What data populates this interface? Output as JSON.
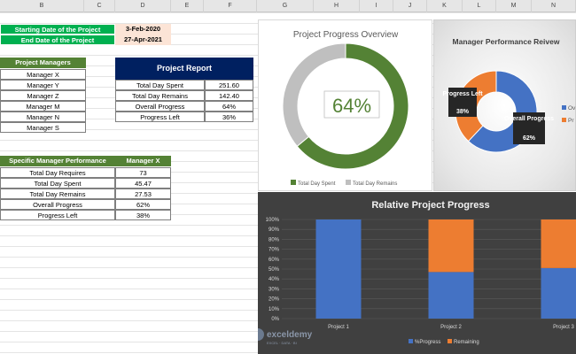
{
  "columns": [
    "B",
    "C",
    "D",
    "E",
    "F",
    "G",
    "H",
    "I",
    "J",
    "K",
    "L",
    "M",
    "N"
  ],
  "project_dates": {
    "start_label": "Starting Date of the Project",
    "start_value": "3-Feb-2020",
    "end_label": "End Date of the Project",
    "end_value": "27-Apr-2021"
  },
  "managers": {
    "header": "Project Managers",
    "items": [
      "Manager X",
      "Manager Y",
      "Manager Z",
      "Manager M",
      "Manager N",
      "Manager S"
    ]
  },
  "project_report": {
    "title": "Project Report",
    "rows": [
      {
        "label": "Total Day Spent",
        "value": "251.60"
      },
      {
        "label": "Total Day Remains",
        "value": "142.40"
      },
      {
        "label": "Overall Progress",
        "value": "64%"
      },
      {
        "label": "Progress Left",
        "value": "36%"
      }
    ]
  },
  "manager_performance": {
    "header_label": "Specific Manager Performance",
    "header_value": "Manager X",
    "rows": [
      {
        "label": "Total Day Requires",
        "value": "73"
      },
      {
        "label": "Total Day Spent",
        "value": "45.47"
      },
      {
        "label": "Total Day Remains",
        "value": "27.53"
      },
      {
        "label": "Overall Progress",
        "value": "62%"
      },
      {
        "label": "Progress Left",
        "value": "38%"
      }
    ]
  },
  "chart_data": [
    {
      "type": "pie",
      "title": "Project Progress Overview",
      "center_label": "64%",
      "categories": [
        "Total Day Spent",
        "Total Day Remains"
      ],
      "values": [
        64,
        36
      ],
      "colors": [
        "#548235",
        "#bfbfbf"
      ],
      "legend": "bottom"
    },
    {
      "type": "pie",
      "title": "Manager Performance Reivew",
      "categories": [
        "Overall Progress",
        "Progress Left"
      ],
      "category_labels": [
        "Overall Progress",
        "Progress Left"
      ],
      "legend_labels": [
        "Ov",
        "Pr"
      ],
      "values": [
        62,
        38
      ],
      "value_labels": [
        "62%",
        "38%"
      ],
      "colors": [
        "#4472c4",
        "#ed7d31"
      ],
      "legend": "right"
    },
    {
      "type": "bar",
      "stacked": true,
      "title": "Relative Project Progress",
      "categories": [
        "Project 1",
        "Project 2",
        "Project 3"
      ],
      "series": [
        {
          "name": "%Progress",
          "values": [
            100,
            47,
            51
          ],
          "color": "#4472c4"
        },
        {
          "name": "Remaining",
          "values": [
            0,
            53,
            49
          ],
          "color": "#ed7d31"
        }
      ],
      "yticks": [
        "0%",
        "10%",
        "20%",
        "30%",
        "40%",
        "50%",
        "60%",
        "70%",
        "80%",
        "90%",
        "100%"
      ],
      "ylim": [
        0,
        100
      ],
      "legend": "bottom"
    }
  ],
  "watermark": {
    "brand": "exceldemy",
    "tagline": "EXCEL · DATA · BI"
  }
}
